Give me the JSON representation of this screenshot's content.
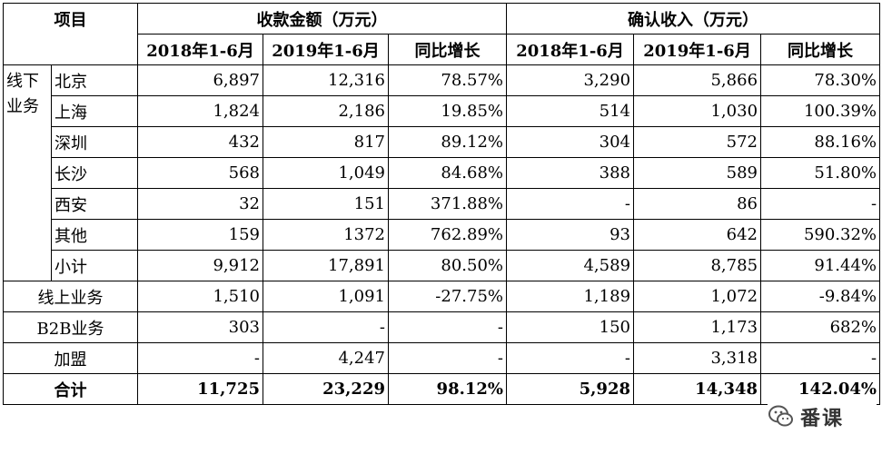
{
  "header": {
    "item": "项目",
    "receipts": "收款金额（万元）",
    "revenue": "确认收入（万元）",
    "periods": [
      "2018年1-6月",
      "2019年1-6月",
      "同比增长",
      "2018年1-6月",
      "2019年1-6月",
      "同比增长"
    ]
  },
  "offline_group_label": [
    "线下",
    "业务"
  ],
  "offline_rows": [
    {
      "city": "北京",
      "values": [
        "6,897",
        "12,316",
        "78.57%",
        "3,290",
        "5,866",
        "78.30%"
      ]
    },
    {
      "city": "上海",
      "values": [
        "1,824",
        "2,186",
        "19.85%",
        "514",
        "1,030",
        "100.39%"
      ]
    },
    {
      "city": "深圳",
      "values": [
        "432",
        "817",
        "89.12%",
        "304",
        "572",
        "88.16%"
      ]
    },
    {
      "city": "长沙",
      "values": [
        "568",
        "1,049",
        "84.68%",
        "388",
        "589",
        "51.80%"
      ]
    },
    {
      "city": "西安",
      "values": [
        "32",
        "151",
        "371.88%",
        "-",
        "86",
        "-"
      ]
    },
    {
      "city": "其他",
      "values": [
        "159",
        "1372",
        "762.89%",
        "93",
        "642",
        "590.32%"
      ]
    },
    {
      "city": "小计",
      "values": [
        "9,912",
        "17,891",
        "80.50%",
        "4,589",
        "8,785",
        "91.44%"
      ]
    }
  ],
  "other_rows": [
    {
      "label": "线上业务",
      "values": [
        "1,510",
        "1,091",
        "-27.75%",
        "1,189",
        "1,072",
        "-9.84%"
      ]
    },
    {
      "label": "B2B业务",
      "values": [
        "303",
        "-",
        "-",
        "150",
        "1,173",
        "682%"
      ]
    },
    {
      "label": "加盟",
      "values": [
        "-",
        "4,247",
        "-",
        "-",
        "3,318",
        "-"
      ]
    }
  ],
  "total_row": {
    "label": "合计",
    "values": [
      "11,725",
      "23,229",
      "98.12%",
      "5,928",
      "14,348",
      "142.04%"
    ]
  },
  "watermark": {
    "text": "番课",
    "icon": "wechat-icon"
  }
}
